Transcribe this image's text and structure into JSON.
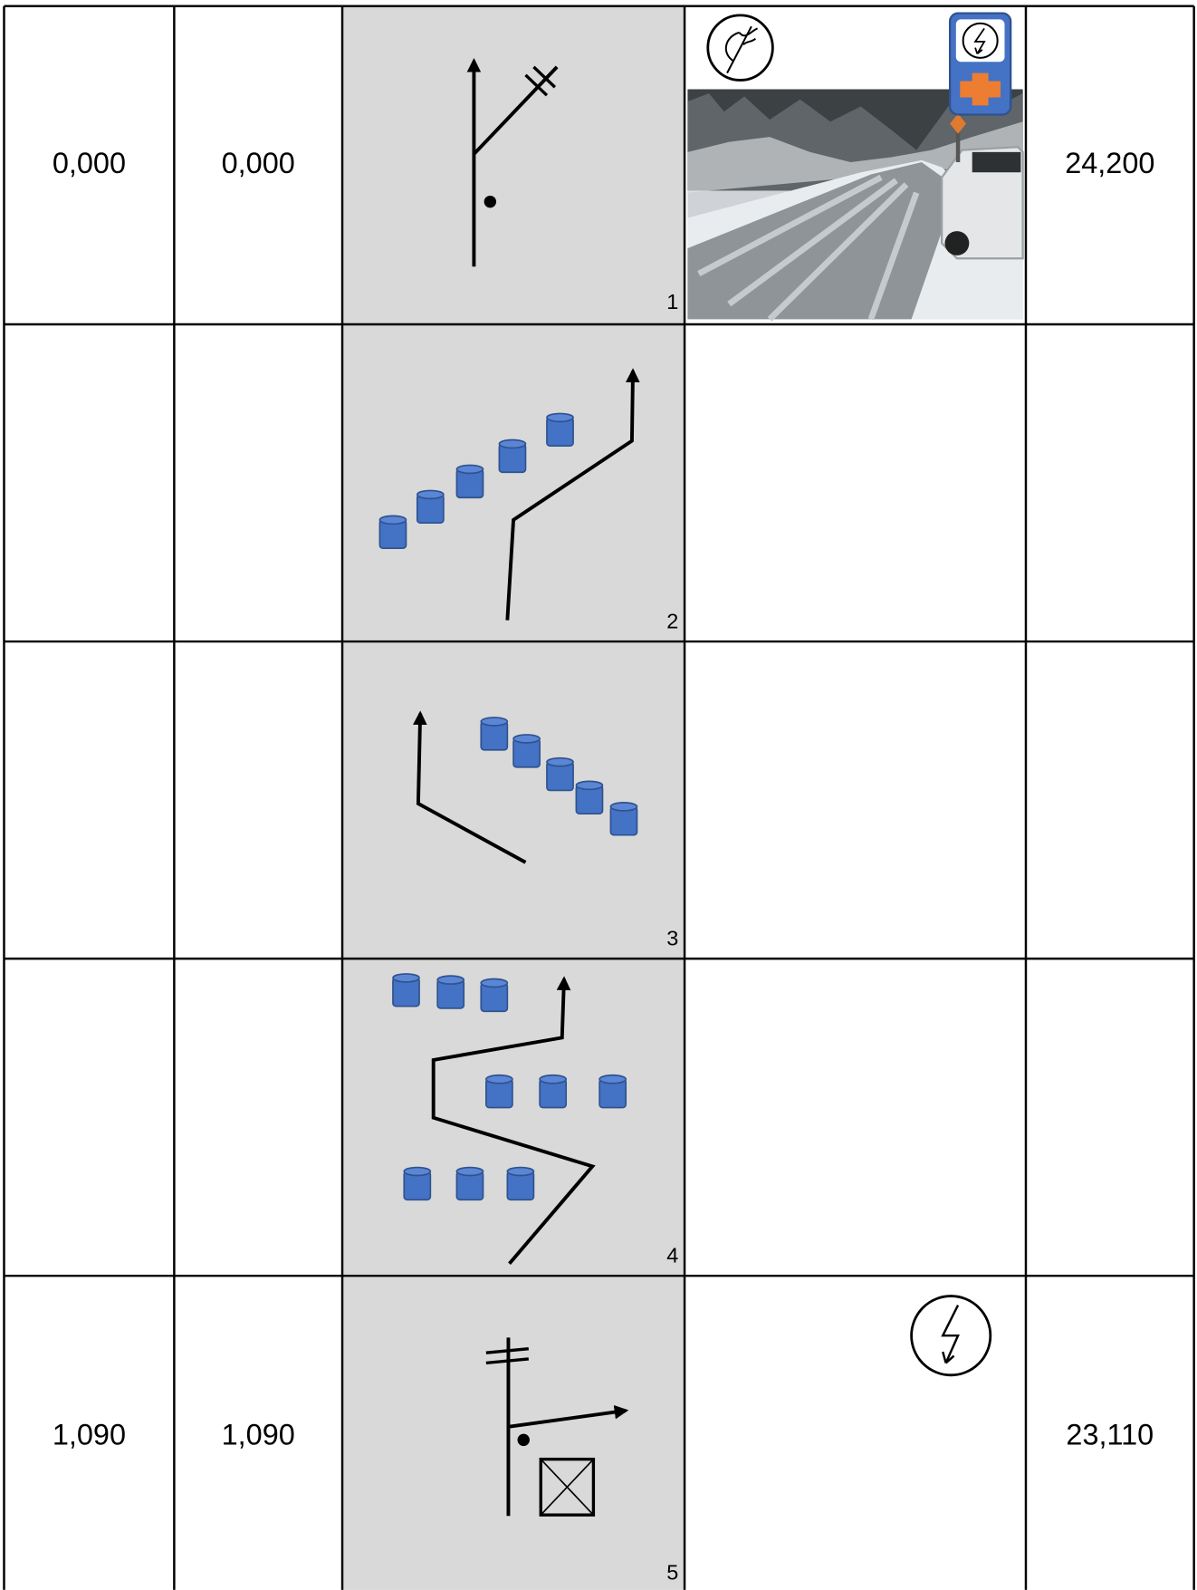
{
  "rows": [
    {
      "total": "0,000",
      "partial": "0,000",
      "number": "1",
      "remaining": "24,200"
    },
    {
      "number": "2"
    },
    {
      "number": "3"
    },
    {
      "number": "4"
    },
    {
      "total": "1,090",
      "partial": "1,090",
      "number": "5",
      "remaining": "23,110"
    }
  ]
}
